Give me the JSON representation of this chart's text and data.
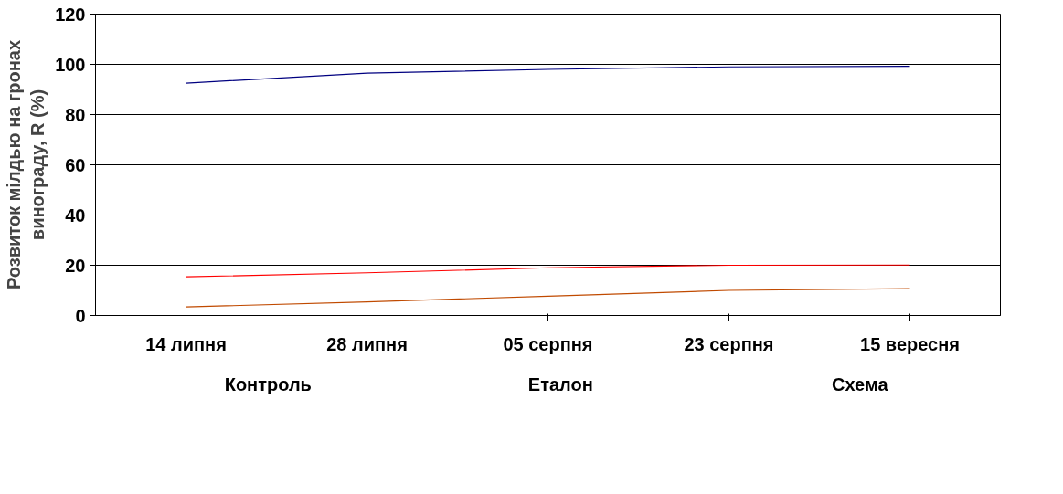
{
  "chart_data": {
    "type": "line",
    "ylabel": "Розвиток мілдью на гронах\nвинограду, R (%)",
    "categories": [
      "14 липня",
      "28 липня",
      "05 серпня",
      "23 серпня",
      "15 вересня"
    ],
    "series": [
      {
        "name": "Контроль",
        "color": "#000080",
        "values": [
          92.5,
          96.5,
          98,
          99,
          99.2
        ]
      },
      {
        "name": "Еталон",
        "color": "#ff0000",
        "values": [
          15.4,
          17,
          19,
          20,
          20.1
        ]
      },
      {
        "name": "Схема",
        "color": "#c04a00",
        "values": [
          3.4,
          5.4,
          7.7,
          10,
          10.7
        ]
      }
    ],
    "ylim": [
      0,
      120
    ],
    "yticks": [
      0,
      20,
      40,
      60,
      80,
      100,
      120
    ],
    "grid": "y",
    "legend": "bottom",
    "marker": "none",
    "line_style": "solid"
  }
}
